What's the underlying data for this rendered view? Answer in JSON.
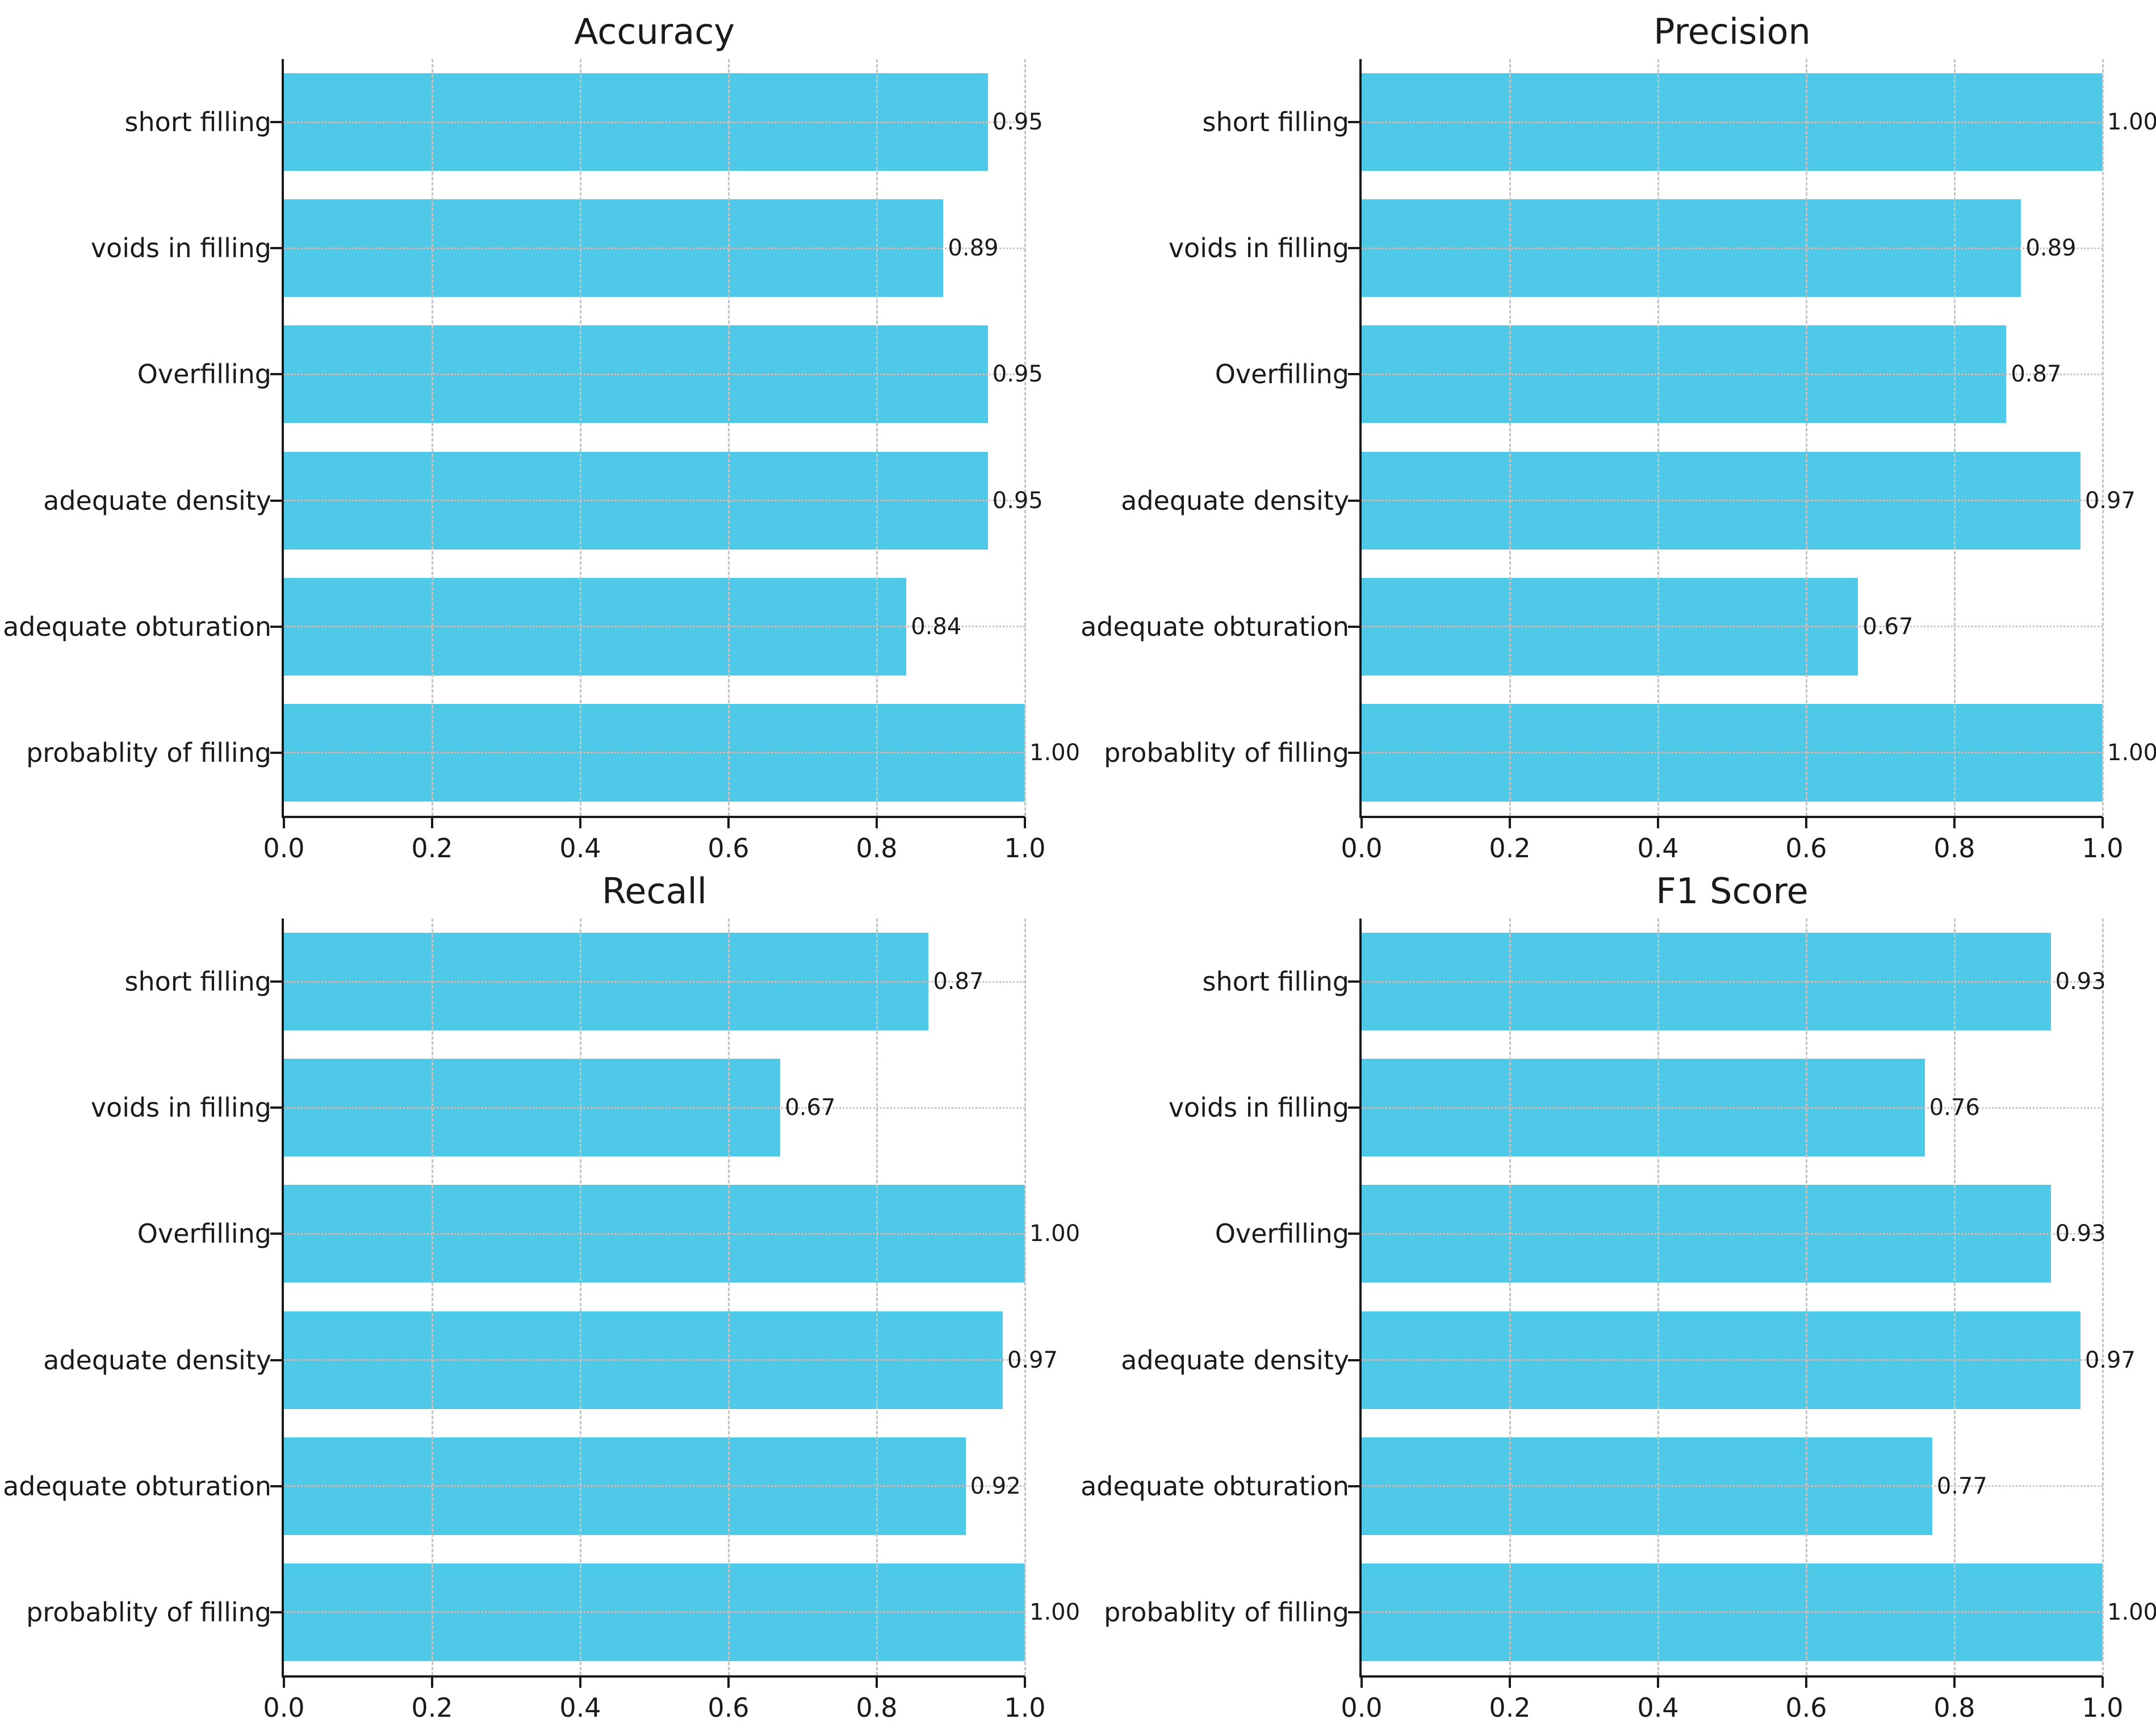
{
  "figure": {
    "background": "#ffffff",
    "bar_color": "#4FC9E8",
    "grid_color": "#c3c3c3",
    "axis_color": "#1a1a1a",
    "text_color": "#1a1a1a"
  },
  "chart_data": [
    {
      "type": "bar",
      "orientation": "horizontal",
      "title": "Accuracy",
      "categories": [
        "short filling",
        "voids in filling",
        "Overfilling",
        "adequate density",
        "adequate obturation",
        "probablity of filling"
      ],
      "values": [
        0.95,
        0.89,
        0.95,
        0.95,
        0.84,
        1.0
      ],
      "value_labels": [
        "0.95",
        "0.89",
        "0.95",
        "0.95",
        "0.84",
        "1.00"
      ],
      "xlim": [
        0.0,
        1.0
      ],
      "xticks": [
        "0.0",
        "0.2",
        "0.4",
        "0.6",
        "0.8",
        "1.0"
      ],
      "grid": {
        "vertical": "dashed",
        "horizontal": "dotted"
      },
      "legend": "none"
    },
    {
      "type": "bar",
      "orientation": "horizontal",
      "title": "Precision",
      "categories": [
        "short filling",
        "voids in filling",
        "Overfilling",
        "adequate density",
        "adequate obturation",
        "probablity of filling"
      ],
      "values": [
        1.0,
        0.89,
        0.87,
        0.97,
        0.67,
        1.0
      ],
      "value_labels": [
        "1.00",
        "0.89",
        "0.87",
        "0.97",
        "0.67",
        "1.00"
      ],
      "xlim": [
        0.0,
        1.0
      ],
      "xticks": [
        "0.0",
        "0.2",
        "0.4",
        "0.6",
        "0.8",
        "1.0"
      ],
      "grid": {
        "vertical": "dashed",
        "horizontal": "dotted"
      },
      "legend": "none"
    },
    {
      "type": "bar",
      "orientation": "horizontal",
      "title": "Recall",
      "categories": [
        "short filling",
        "voids in filling",
        "Overfilling",
        "adequate density",
        "adequate obturation",
        "probablity of filling"
      ],
      "values": [
        0.87,
        0.67,
        1.0,
        0.97,
        0.92,
        1.0
      ],
      "value_labels": [
        "0.87",
        "0.67",
        "1.00",
        "0.97",
        "0.92",
        "1.00"
      ],
      "xlim": [
        0.0,
        1.0
      ],
      "xticks": [
        "0.0",
        "0.2",
        "0.4",
        "0.6",
        "0.8",
        "1.0"
      ],
      "grid": {
        "vertical": "dashed",
        "horizontal": "dotted"
      },
      "legend": "none"
    },
    {
      "type": "bar",
      "orientation": "horizontal",
      "title": "F1 Score",
      "categories": [
        "short filling",
        "voids in filling",
        "Overfilling",
        "adequate density",
        "adequate obturation",
        "probablity of filling"
      ],
      "values": [
        0.93,
        0.76,
        0.93,
        0.97,
        0.77,
        1.0
      ],
      "value_labels": [
        "0.93",
        "0.76",
        "0.93",
        "0.97",
        "0.77",
        "1.00"
      ],
      "xlim": [
        0.0,
        1.0
      ],
      "xticks": [
        "0.0",
        "0.2",
        "0.4",
        "0.6",
        "0.8",
        "1.0"
      ],
      "grid": {
        "vertical": "dashed",
        "horizontal": "dotted"
      },
      "legend": "none"
    }
  ]
}
